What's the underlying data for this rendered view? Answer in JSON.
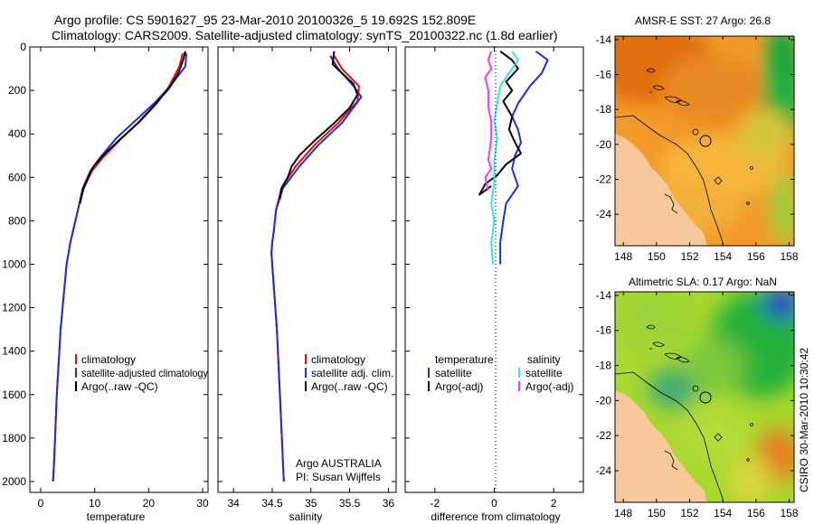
{
  "header": {
    "line1": "Argo profile: CS 5901627_95 23-Mar-2010 20100326_5 19.692S 152.809E",
    "line2": "Climatology: CARS2009. Satellite-adjusted climatology: synTS_20100322.nc (1.8d earlier)"
  },
  "colors": {
    "climatology": "#ff0000",
    "satellite": "#1a2ee6",
    "argo": "#000000",
    "satellite_sal": "#33e6e6",
    "argo_sal": "#ff33ff",
    "land": "#f7c89a"
  },
  "chart_data": [
    {
      "type": "line",
      "id": "temperature",
      "xlabel": "temperature",
      "ylabel": "",
      "xlim": [
        -2,
        31
      ],
      "ylim": [
        2050,
        0
      ],
      "xticks": [
        0,
        10,
        20,
        30
      ],
      "yticks": [
        0,
        200,
        400,
        600,
        800,
        1000,
        1200,
        1400,
        1600,
        1800,
        2000
      ],
      "y_reversed": true,
      "legend": [
        "climatology",
        "satellite-adjusted climatology",
        "Argo(..raw -QC)"
      ],
      "legend_position": "lower-right",
      "series": [
        {
          "name": "climatology",
          "color": "#ff0000",
          "points": [
            [
              26.3,
              30
            ],
            [
              25.7,
              90
            ],
            [
              23.8,
              180
            ],
            [
              21.5,
              260
            ],
            [
              18.5,
              340
            ],
            [
              15.0,
              420
            ],
            [
              11.5,
              510
            ],
            [
              9.5,
              570
            ],
            [
              8.0,
              650
            ],
            [
              7.0,
              740
            ],
            [
              5.5,
              900
            ],
            [
              4.8,
              1000
            ],
            [
              3.7,
              1300
            ],
            [
              3.0,
              1600
            ],
            [
              2.5,
              1900
            ],
            [
              2.3,
              2000
            ]
          ]
        },
        {
          "name": "satellite-adjusted climatology",
          "color": "#1a2ee6",
          "points": [
            [
              27.0,
              30
            ],
            [
              26.8,
              90
            ],
            [
              24.0,
              180
            ],
            [
              21.0,
              260
            ],
            [
              17.5,
              340
            ],
            [
              14.0,
              420
            ],
            [
              11.0,
              510
            ],
            [
              9.2,
              570
            ],
            [
              7.8,
              650
            ],
            [
              7.0,
              740
            ],
            [
              5.5,
              900
            ],
            [
              4.8,
              1000
            ],
            [
              3.7,
              1300
            ],
            [
              3.0,
              1600
            ],
            [
              2.5,
              1900
            ],
            [
              2.3,
              2000
            ]
          ]
        },
        {
          "name": "Argo(..raw -QC)",
          "color": "#000000",
          "points": [
            [
              26.8,
              20
            ],
            [
              26.4,
              60
            ],
            [
              25.5,
              120
            ],
            [
              23.8,
              190
            ],
            [
              21.0,
              270
            ],
            [
              18.0,
              350
            ],
            [
              14.5,
              430
            ],
            [
              11.5,
              500
            ],
            [
              9.8,
              550
            ],
            [
              8.8,
              600
            ],
            [
              7.8,
              660
            ],
            [
              7.3,
              720
            ]
          ]
        }
      ]
    },
    {
      "type": "line",
      "id": "salinity",
      "xlabel": "salinity",
      "ylabel": "",
      "xlim": [
        33.8,
        36.1
      ],
      "ylim": [
        2050,
        0
      ],
      "xticks": [
        34,
        34.5,
        35,
        35.5,
        36
      ],
      "yticks": [
        0,
        200,
        400,
        600,
        800,
        1000,
        1200,
        1400,
        1600,
        1800,
        2000
      ],
      "y_reversed": true,
      "legend": [
        "climatology",
        "satellite adj. clim.",
        "Argo(..raw -QC)"
      ],
      "legend_position": "lower-right",
      "annotations": [
        "Argo AUSTRALIA",
        "PI: Susan Wijffels"
      ],
      "series": [
        {
          "name": "climatology",
          "color": "#ff0000",
          "points": [
            [
              35.3,
              40
            ],
            [
              35.4,
              100
            ],
            [
              35.62,
              180
            ],
            [
              35.6,
              250
            ],
            [
              35.35,
              350
            ],
            [
              35.05,
              450
            ],
            [
              34.8,
              550
            ],
            [
              34.62,
              650
            ],
            [
              34.55,
              750
            ],
            [
              34.52,
              850
            ],
            [
              34.5,
              900
            ],
            [
              34.49,
              950
            ],
            [
              34.52,
              1100
            ],
            [
              34.56,
              1300
            ],
            [
              34.6,
              1600
            ],
            [
              34.65,
              2000
            ]
          ]
        },
        {
          "name": "satellite adj. clim.",
          "color": "#1a2ee6",
          "points": [
            [
              35.25,
              40
            ],
            [
              35.35,
              100
            ],
            [
              35.55,
              180
            ],
            [
              35.65,
              230
            ],
            [
              35.4,
              350
            ],
            [
              35.1,
              450
            ],
            [
              34.85,
              550
            ],
            [
              34.64,
              650
            ],
            [
              34.55,
              750
            ],
            [
              34.52,
              850
            ],
            [
              34.5,
              900
            ],
            [
              34.49,
              950
            ],
            [
              34.52,
              1100
            ],
            [
              34.56,
              1300
            ],
            [
              34.6,
              1600
            ],
            [
              34.65,
              2000
            ]
          ]
        },
        {
          "name": "Argo(..raw -QC)",
          "color": "#000000",
          "points": [
            [
              35.3,
              20
            ],
            [
              35.28,
              80
            ],
            [
              35.4,
              120
            ],
            [
              35.55,
              170
            ],
            [
              35.6,
              220
            ],
            [
              35.5,
              280
            ],
            [
              35.3,
              350
            ],
            [
              35.05,
              430
            ],
            [
              34.85,
              500
            ],
            [
              34.75,
              550
            ],
            [
              34.7,
              600
            ],
            [
              34.62,
              650
            ],
            [
              34.6,
              700
            ]
          ]
        }
      ]
    },
    {
      "type": "line",
      "id": "difference",
      "xlabel": "difference from climatology",
      "ylabel": "",
      "xlim": [
        -3,
        3
      ],
      "ylim": [
        2050,
        0
      ],
      "xticks": [
        -2,
        0,
        2
      ],
      "yticks": [
        0,
        200,
        400,
        600,
        800,
        1000,
        1200,
        1400,
        1600,
        1800,
        2000
      ],
      "y_reversed": true,
      "legend_title": [
        "temperature",
        "salinity"
      ],
      "legend": [
        "satellite",
        "Argo(-adj)",
        "satellite",
        "Argo(-adj)"
      ],
      "series": [
        {
          "name": "temperature satellite",
          "color": "#1a2ee6",
          "points": [
            [
              1.4,
              20
            ],
            [
              1.8,
              60
            ],
            [
              1.6,
              120
            ],
            [
              1.2,
              180
            ],
            [
              0.8,
              260
            ],
            [
              0.6,
              320
            ],
            [
              0.8,
              380
            ],
            [
              0.9,
              440
            ],
            [
              0.7,
              500
            ],
            [
              0.6,
              560
            ],
            [
              0.8,
              640
            ],
            [
              0.4,
              720
            ],
            [
              0.3,
              800
            ],
            [
              0.2,
              900
            ],
            [
              0.2,
              1000
            ]
          ]
        },
        {
          "name": "temperature Argo(-adj)",
          "color": "#000000",
          "points": [
            [
              0.2,
              20
            ],
            [
              0.6,
              60
            ],
            [
              0.8,
              100
            ],
            [
              0.4,
              160
            ],
            [
              0.6,
              200
            ],
            [
              0.3,
              250
            ],
            [
              0.6,
              320
            ],
            [
              0.5,
              380
            ],
            [
              0.7,
              440
            ],
            [
              0.9,
              490
            ],
            [
              0.4,
              540
            ],
            [
              0.1,
              590
            ],
            [
              -0.3,
              630
            ],
            [
              -0.5,
              680
            ],
            [
              -0.1,
              640
            ]
          ]
        },
        {
          "name": "salinity satellite",
          "color": "#33e6e6",
          "points": [
            [
              0.6,
              20
            ],
            [
              0.8,
              60
            ],
            [
              0.5,
              120
            ],
            [
              0.2,
              180
            ],
            [
              0.1,
              260
            ],
            [
              0.0,
              340
            ],
            [
              0.1,
              420
            ],
            [
              0.0,
              520
            ],
            [
              0.0,
              620
            ],
            [
              -0.1,
              720
            ],
            [
              0.0,
              800
            ],
            [
              -0.1,
              900
            ],
            [
              -0.05,
              1000
            ]
          ]
        },
        {
          "name": "salinity Argo(-adj)",
          "color": "#ff33ff",
          "points": [
            [
              -0.1,
              20
            ],
            [
              -0.2,
              60
            ],
            [
              -0.1,
              100
            ],
            [
              -0.3,
              140
            ],
            [
              -0.2,
              200
            ],
            [
              -0.2,
              280
            ],
            [
              -0.1,
              340
            ],
            [
              -0.1,
              420
            ],
            [
              -0.2,
              520
            ],
            [
              -0.1,
              560
            ],
            [
              -0.3,
              600
            ],
            [
              -0.2,
              660
            ]
          ]
        }
      ]
    },
    {
      "type": "heatmap",
      "id": "sst_map",
      "title": "AMSR-E SST: 27 Argo: 26.8",
      "xlim": [
        147.5,
        158.3
      ],
      "ylim": [
        -25.8,
        -13.8
      ],
      "xticks": [
        148,
        150,
        152,
        154,
        156,
        158
      ],
      "yticks": [
        -14,
        -16,
        -18,
        -20,
        -22,
        -24
      ],
      "argo_position": [
        152.809,
        -19.692
      ]
    },
    {
      "type": "heatmap",
      "id": "sla_map",
      "title": "Altimetric SLA: 0.17 Argo: NaN",
      "xlim": [
        147.5,
        158.3
      ],
      "ylim": [
        -25.8,
        -13.8
      ],
      "xticks": [
        148,
        150,
        152,
        154,
        156,
        158
      ],
      "yticks": [
        -14,
        -16,
        -18,
        -20,
        -22,
        -24
      ],
      "argo_position": [
        152.809,
        -19.692
      ]
    }
  ],
  "footer": {
    "timestamp": "CSIRO 30-Mar-2010 10:30:42"
  }
}
